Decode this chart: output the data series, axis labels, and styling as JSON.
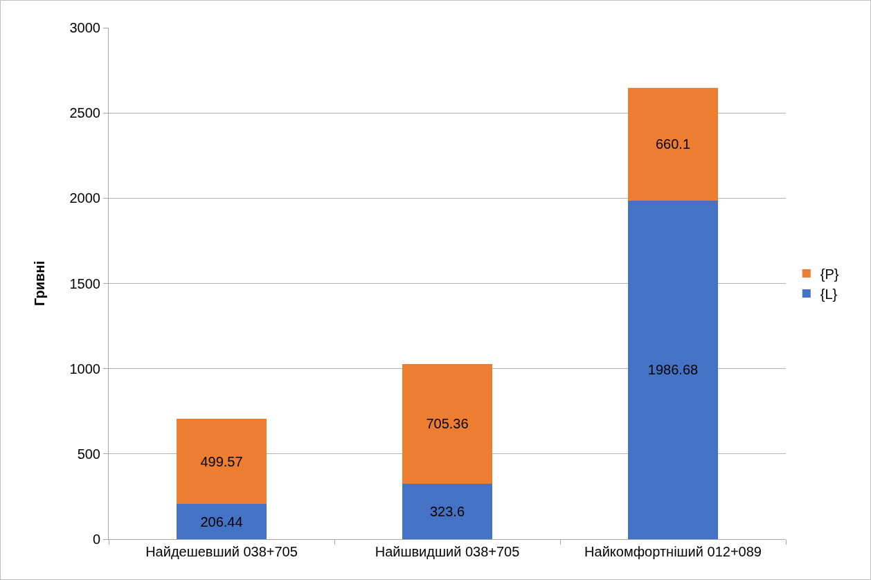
{
  "chart_data": {
    "type": "bar",
    "stacked": true,
    "ylabel": "Гривні",
    "categories": [
      "Найдешевший 038+705",
      "Найшвидший 038+705",
      "Найкомфортніший 012+089"
    ],
    "series": [
      {
        "name": "{L}",
        "color": "#4472c4",
        "values": [
          206.44,
          323.6,
          1986.68
        ]
      },
      {
        "name": "{P}",
        "color": "#ed7d31",
        "values": [
          499.57,
          705.36,
          660.1
        ]
      }
    ],
    "ylim": [
      0,
      3000
    ],
    "yticks": [
      0,
      500,
      1000,
      1500,
      2000,
      2500,
      3000
    ],
    "grid": "y",
    "legend": "right",
    "data_labels": true
  }
}
